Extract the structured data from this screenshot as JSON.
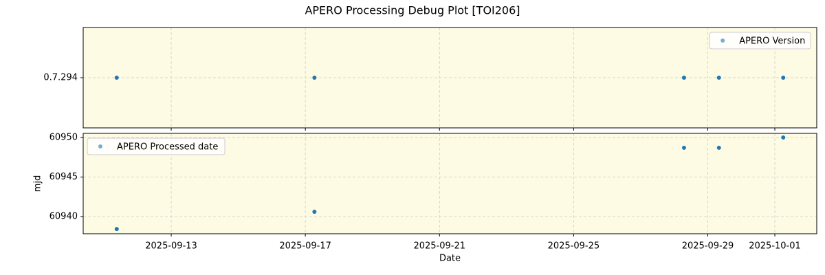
{
  "title": "APERO Processing Debug Plot [TOI206]",
  "chart_data": [
    {
      "type": "scatter",
      "legend": "upper right",
      "grid": true,
      "background": "#fdfbe3",
      "xlim": [
        "2025-09-10T09:00",
        "2025-10-02T06:00"
      ],
      "ylim": [
        0.7289,
        0.7299
      ],
      "yticks": [
        {
          "value": 0.7294,
          "label": "0.7.294"
        }
      ],
      "series": [
        {
          "name": "APERO Version",
          "color": "#1f77b4",
          "x": [
            "2025-09-11T09:00",
            "2025-09-17T06:30",
            "2025-09-28T07:00",
            "2025-09-29T08:00",
            "2025-10-01T06:00"
          ],
          "values": [
            0.7294,
            0.7294,
            0.7294,
            0.7294,
            0.7294
          ]
        }
      ]
    },
    {
      "type": "scatter",
      "legend": "upper left",
      "grid": true,
      "background": "#fdfbe3",
      "xlabel": "Date",
      "ylabel": "mjd",
      "xlim": [
        "2025-09-10T09:00",
        "2025-10-02T06:00"
      ],
      "xticks": [
        "2025-09-13",
        "2025-09-17",
        "2025-09-21",
        "2025-09-25",
        "2025-09-29",
        "2025-10-01"
      ],
      "ylim": [
        60937.83,
        60950.52
      ],
      "yticks": [
        60940,
        60945,
        60950
      ],
      "series": [
        {
          "name": "APERO Processed date",
          "color": "#1f77b4",
          "x": [
            "2025-09-11T09:00",
            "2025-09-17T06:30",
            "2025-09-28T07:00",
            "2025-09-29T08:00",
            "2025-10-01T06:00"
          ],
          "values": [
            60938.43,
            60940.61,
            60948.7,
            60948.7,
            60950.0
          ]
        }
      ]
    }
  ]
}
